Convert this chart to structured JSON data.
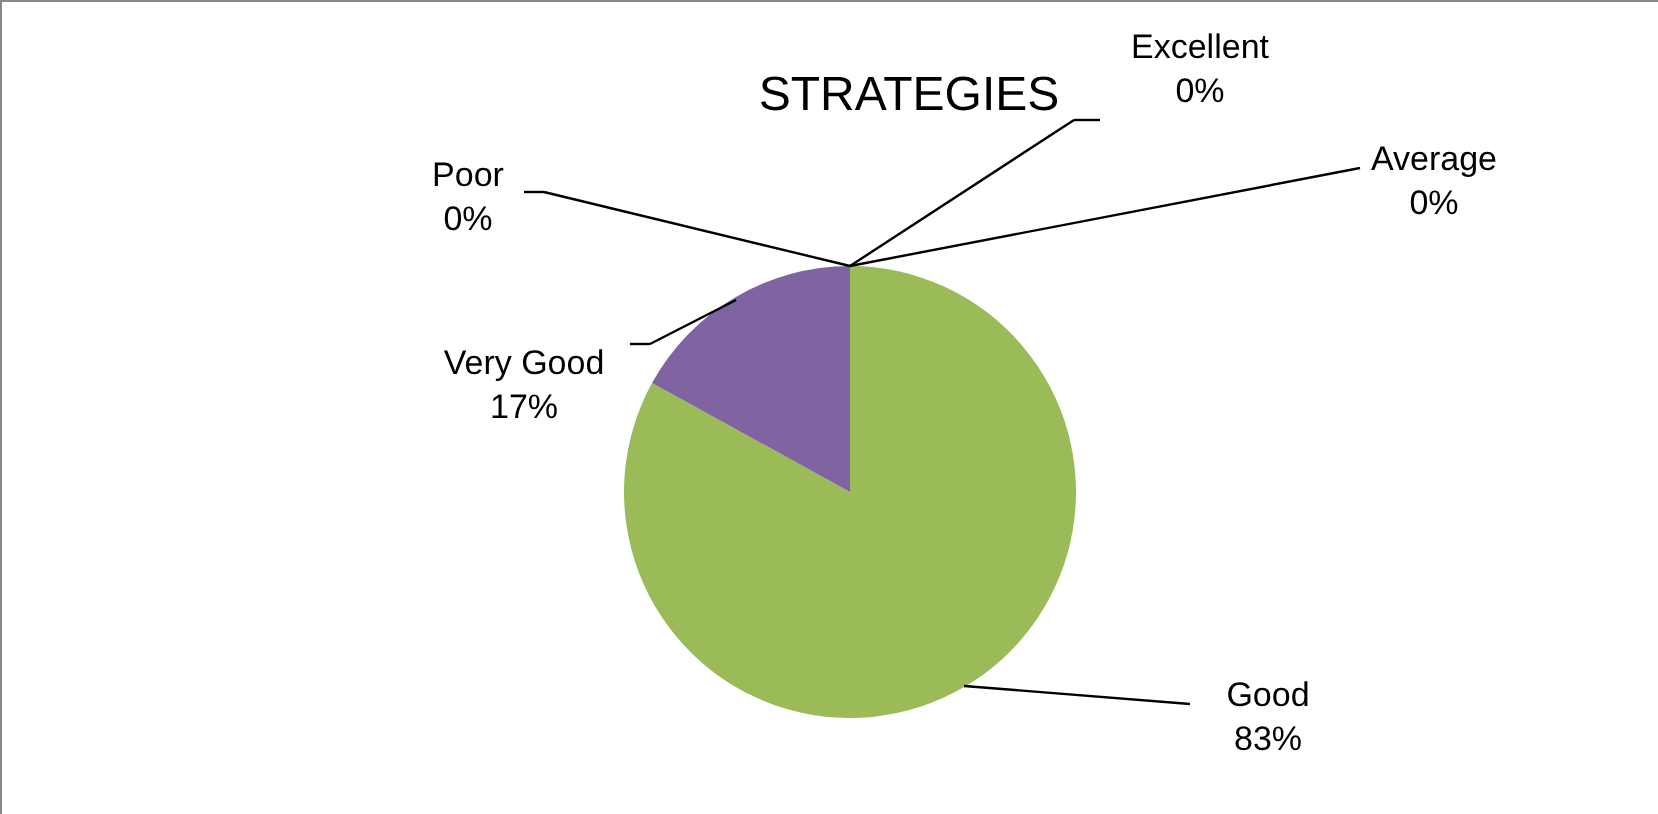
{
  "chart_data": {
    "type": "pie",
    "title": "STRATEGIES",
    "categories": [
      "Excellent",
      "Average",
      "Good",
      "Very Good",
      "Poor"
    ],
    "values": [
      0,
      0,
      83,
      17,
      0
    ],
    "value_labels": [
      "0%",
      "0%",
      "83%",
      "17%",
      "0%"
    ],
    "colors": [
      "#4f81bd",
      "#c0504d",
      "#9bbb59",
      "#8064a2",
      "#4bacc6"
    ]
  }
}
